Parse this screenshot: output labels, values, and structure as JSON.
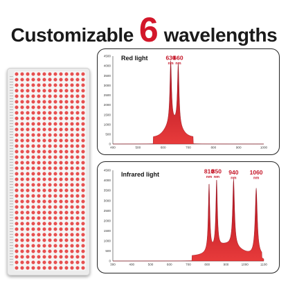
{
  "headline": {
    "before": "Customizable",
    "number": "6",
    "after": "wavelengths"
  },
  "colors": {
    "accent": "#d3172a",
    "spectrum_dark": "#a80f1e",
    "spectrum_light": "#e83b3b"
  },
  "device": {
    "icon": "red-light-therapy-panel-icon"
  },
  "charts": [
    {
      "id": "red",
      "title": "Red light",
      "type": "area",
      "xlim": [
        400,
        1000
      ],
      "ylim": [
        0,
        4500
      ],
      "x_ticks": [
        400,
        500,
        600,
        700,
        800,
        900,
        1000
      ],
      "y_ticks": [
        0,
        500,
        1000,
        1500,
        2000,
        2500,
        3000,
        3500,
        4000,
        4500
      ],
      "unit": "nm",
      "peaks": [
        {
          "wavelength": 630,
          "label": "630",
          "value": 3950,
          "width": 4
        },
        {
          "wavelength": 660,
          "label": "660",
          "value": 3950,
          "width": 4
        }
      ],
      "range": [
        560,
        720
      ],
      "baseline_value": 350,
      "shoulder_value": 1200
    },
    {
      "id": "ir",
      "title": "Infrared light",
      "type": "area",
      "xlim": [
        300,
        1100
      ],
      "ylim": [
        0,
        4500
      ],
      "x_ticks": [
        300,
        400,
        500,
        600,
        700,
        800,
        900,
        1000,
        1100
      ],
      "y_ticks": [
        0,
        500,
        1000,
        1500,
        2000,
        2500,
        3000,
        3500,
        4000,
        4500
      ],
      "unit": "nm",
      "peaks": [
        {
          "wavelength": 810,
          "label": "810",
          "value": 4000,
          "width": 5
        },
        {
          "wavelength": 850,
          "label": "850",
          "value": 4000,
          "width": 5
        },
        {
          "wavelength": 940,
          "label": "940",
          "value": 3950,
          "width": 6
        },
        {
          "wavelength": 1060,
          "label": "1060",
          "value": 3950,
          "width": 7
        }
      ],
      "range": [
        720,
        1090
      ],
      "baseline_value": 250,
      "shoulder_value": 900
    }
  ]
}
